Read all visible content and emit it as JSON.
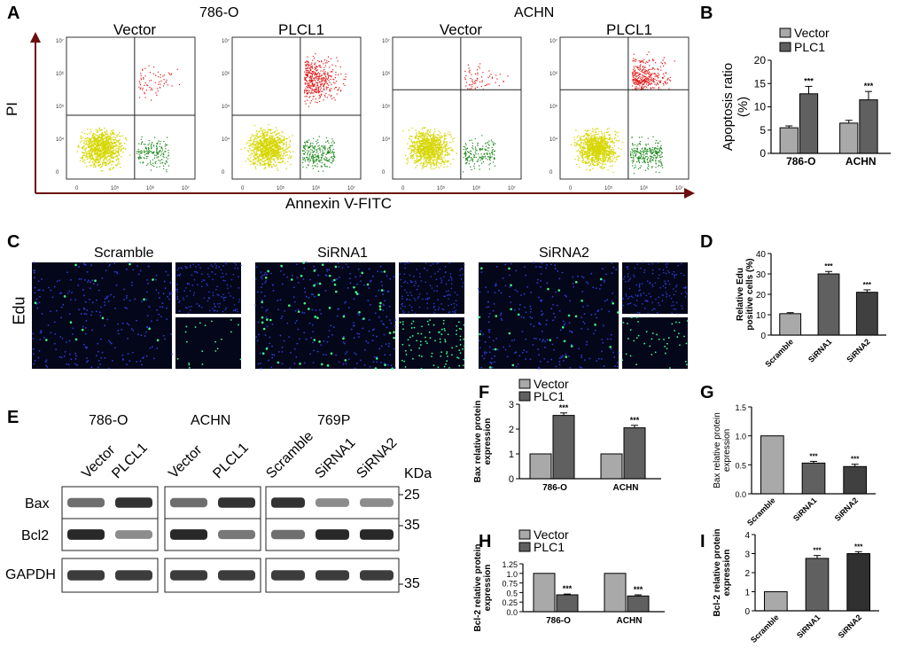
{
  "panel_labels": {
    "A": "A",
    "B": "B",
    "C": "C",
    "D": "D",
    "E": "E",
    "F": "F",
    "G": "G",
    "H": "H",
    "I": "I"
  },
  "flow": {
    "cell_lines": [
      "786-O",
      "ACHN"
    ],
    "plots": [
      {
        "title": "Vector",
        "h_frac": 0.55,
        "density": "low"
      },
      {
        "title": "PLCL1",
        "h_frac": 0.55,
        "density": "high"
      },
      {
        "title": "Vector",
        "h_frac": 0.37,
        "density": "low"
      },
      {
        "title": "PLCL1",
        "h_frac": 0.37,
        "density": "high"
      }
    ],
    "y_axis_label": "PI",
    "x_axis_label": "Annexin V-FITC",
    "y_ticks": [
      "10⁷",
      "10⁶",
      "10⁵",
      "10⁴",
      "0"
    ],
    "x_ticks": [
      "0",
      "10⁵",
      "10⁶",
      "10⁷"
    ],
    "colors": {
      "live": "#d6d600",
      "early": "#1e8a1e",
      "late": "#e01b1b",
      "axis_arrow": "#6b0f0f"
    }
  },
  "edu": {
    "side_label": "Edu",
    "groups": [
      "Scramble",
      "SiRNA1",
      "SiRNA2"
    ],
    "cell_density": [
      14,
      60,
      28
    ],
    "colors": {
      "bg": "#04061a",
      "nucleus": "#2b3fd6",
      "edu": "#3cff8a"
    }
  },
  "western": {
    "groups": [
      {
        "title": "786-O",
        "lanes": [
          "Vector",
          "PLCL1"
        ]
      },
      {
        "title": "ACHN",
        "lanes": [
          "Vector",
          "PLCL1"
        ]
      },
      {
        "title": "769P",
        "lanes": [
          "Scramble",
          "SiRNA1",
          "SiRNA2"
        ]
      }
    ],
    "kda_label": "KDa",
    "rows": [
      {
        "name": "Bax",
        "marker": "25"
      },
      {
        "name": "Bcl2",
        "marker": "35"
      },
      {
        "name": "GAPDH",
        "marker": "35"
      }
    ],
    "band_intensity": {
      "Bax": [
        [
          0.6,
          0.9
        ],
        [
          0.6,
          0.9
        ],
        [
          0.9,
          0.45,
          0.45
        ]
      ],
      "Bcl2": [
        [
          0.95,
          0.45
        ],
        [
          0.95,
          0.55
        ],
        [
          0.6,
          0.95,
          0.95
        ]
      ],
      "GAPDH": [
        [
          0.85,
          0.85
        ],
        [
          0.85,
          0.85
        ],
        [
          0.85,
          0.85,
          0.85
        ]
      ]
    }
  },
  "chart_data": [
    {
      "id": "B",
      "type": "bar",
      "title": "",
      "ylabel": "Apoptosis ratio (%)",
      "ylim": [
        0,
        20
      ],
      "yticks": [
        0,
        5,
        10,
        15,
        20
      ],
      "categories": [
        "786-O",
        "ACHN"
      ],
      "series": [
        {
          "name": "Vector",
          "values": [
            5.5,
            6.5
          ],
          "errors": [
            0.4,
            0.6
          ],
          "color": "#a9a9a9"
        },
        {
          "name": "PLC1",
          "values": [
            12.8,
            11.5
          ],
          "errors": [
            1.6,
            1.8
          ],
          "color": "#606060"
        }
      ],
      "annotations": [
        {
          "category": "786-O",
          "series": "PLC1",
          "text": "***"
        },
        {
          "category": "ACHN",
          "series": "PLC1",
          "text": "***"
        }
      ],
      "legend": "top-left"
    },
    {
      "id": "D",
      "type": "bar",
      "ylabel": "Relative Edu positive cells (%)",
      "ylim": [
        0,
        40
      ],
      "yticks": [
        0,
        10,
        20,
        30,
        40
      ],
      "categories": [
        "Scramble",
        "SiRNA1",
        "SiRNA2"
      ],
      "values": [
        10.5,
        30,
        21
      ],
      "errors": [
        0.5,
        1.2,
        1.2
      ],
      "colors": [
        "#a9a9a9",
        "#606060",
        "#404040"
      ],
      "annotations": [
        "",
        "***",
        "***"
      ]
    },
    {
      "id": "F",
      "type": "bar",
      "ylabel": "Bax relative protein expression",
      "ylim": [
        0,
        3
      ],
      "yticks": [
        0,
        1,
        2,
        3
      ],
      "categories": [
        "786-O",
        "ACHN"
      ],
      "series": [
        {
          "name": "Vector",
          "values": [
            1.0,
            1.0
          ],
          "errors": [
            0,
            0
          ],
          "color": "#a9a9a9"
        },
        {
          "name": "PLC1",
          "values": [
            2.55,
            2.05
          ],
          "errors": [
            0.1,
            0.1
          ],
          "color": "#606060"
        }
      ],
      "annotations": [
        {
          "category": "786-O",
          "series": "PLC1",
          "text": "***"
        },
        {
          "category": "ACHN",
          "series": "PLC1",
          "text": "***"
        }
      ],
      "legend": "top-left"
    },
    {
      "id": "G",
      "type": "bar",
      "ylabel": "Bax relative protein expression",
      "ylim": [
        0,
        1.5
      ],
      "yticks": [
        "0.0",
        "0.5",
        "1.0",
        "1.5"
      ],
      "categories": [
        "Scramble",
        "SiRNA1",
        "SiRNA2"
      ],
      "values": [
        1.0,
        0.53,
        0.47
      ],
      "errors": [
        0,
        0.03,
        0.04
      ],
      "colors": [
        "#a9a9a9",
        "#606060",
        "#404040"
      ],
      "annotations": [
        "",
        "***",
        "***"
      ]
    },
    {
      "id": "H",
      "type": "bar",
      "ylabel": "Bcl-2 relative protein expression",
      "ylim": [
        0,
        1.25
      ],
      "yticks": [
        "0.0",
        "0.25",
        "0.5",
        "0.75",
        "1.0",
        "1.25"
      ],
      "categories": [
        "786-O",
        "ACHN"
      ],
      "series": [
        {
          "name": "Vector",
          "values": [
            1.0,
            1.0
          ],
          "errors": [
            0,
            0
          ],
          "color": "#a9a9a9"
        },
        {
          "name": "PLC1",
          "values": [
            0.44,
            0.41
          ],
          "errors": [
            0.02,
            0.03
          ],
          "color": "#606060"
        }
      ],
      "annotations": [
        {
          "category": "786-O",
          "series": "PLC1",
          "text": "***"
        },
        {
          "category": "ACHN",
          "series": "PLC1",
          "text": "***"
        }
      ],
      "legend": "top-left"
    },
    {
      "id": "I",
      "type": "bar",
      "ylabel": "Bcl-2 relative protein expression",
      "ylim": [
        0,
        4
      ],
      "yticks": [
        0,
        1,
        2,
        3,
        4
      ],
      "categories": [
        "Scramble",
        "SiRNA1",
        "SiRNA2"
      ],
      "values": [
        1.0,
        2.75,
        3.0
      ],
      "errors": [
        0,
        0.15,
        0.1
      ],
      "colors": [
        "#a9a9a9",
        "#606060",
        "#303030"
      ],
      "annotations": [
        "",
        "***",
        "***"
      ]
    }
  ]
}
